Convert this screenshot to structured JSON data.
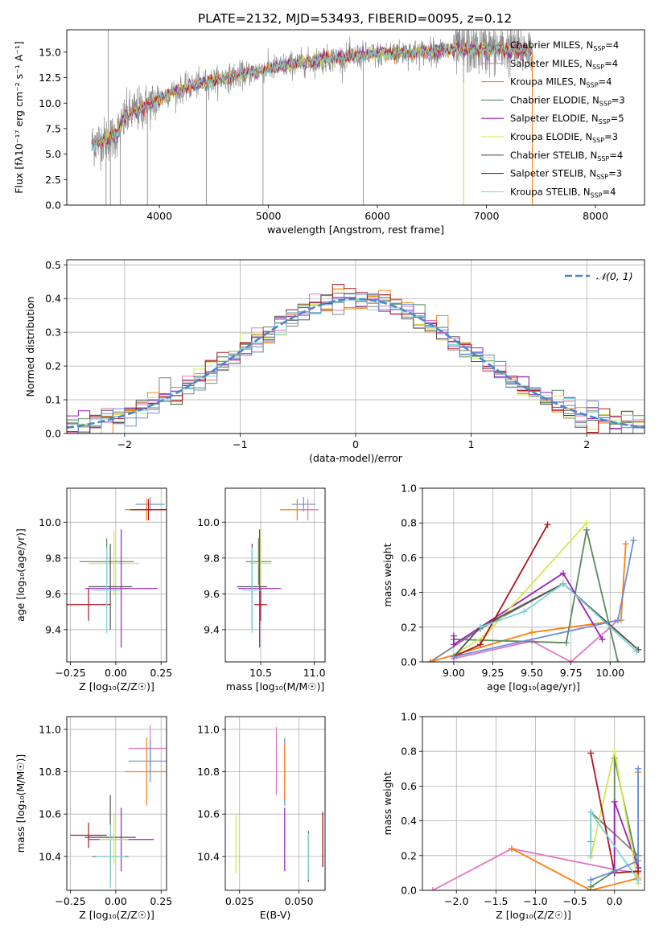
{
  "figure": {
    "title": "PLATE=2132, MJD=53493, FIBERID=0095, z=0.12"
  },
  "chart_data": [
    {
      "id": "spectrum",
      "type": "line",
      "xlabel": "wavelength [Angstrom, rest frame]",
      "ylabel": "Flux [fλ10⁻¹⁷ erg cm⁻² s⁻¹ A⁻¹]",
      "xlim": [
        3150,
        8450
      ],
      "ylim": [
        0,
        17.2
      ],
      "xticks": [
        4000,
        5000,
        6000,
        7000,
        8000
      ],
      "yticks": [
        0.0,
        2.5,
        5.0,
        7.5,
        10.0,
        12.5,
        15.0
      ],
      "grid": false,
      "legend_position": "right",
      "data_range": [
        3380,
        7420
      ],
      "model_continuum": [
        [
          3380,
          6.0
        ],
        [
          3600,
          6.8
        ],
        [
          3700,
          8.8
        ],
        [
          3900,
          9.8
        ],
        [
          4100,
          11.0
        ],
        [
          4400,
          12.0
        ],
        [
          4800,
          12.9
        ],
        [
          5200,
          13.8
        ],
        [
          5600,
          14.4
        ],
        [
          6000,
          14.8
        ],
        [
          6400,
          15.0
        ],
        [
          6800,
          15.3
        ],
        [
          7100,
          15.3
        ],
        [
          7420,
          15.2
        ]
      ],
      "series": [
        {
          "name": "Chabrier MILES, N",
          "sub": "SSP",
          "tail": "=4",
          "color": "#808080"
        },
        {
          "name": "Salpeter MILES, N",
          "sub": "SSP",
          "tail": "=4",
          "color": "#e377c2"
        },
        {
          "name": "Kroupa MILES, N",
          "sub": "SSP",
          "tail": "=4",
          "color": "#ff7f0e"
        },
        {
          "name": "Chabrier ELODIE, N",
          "sub": "SSP",
          "tail": "=3",
          "color": "#5b8a5b"
        },
        {
          "name": "Salpeter ELODIE, N",
          "sub": "SSP",
          "tail": "=5",
          "color": "#9a1fb8"
        },
        {
          "name": "Kroupa ELODIE, N",
          "sub": "SSP",
          "tail": "=3",
          "color": "#d4e84a"
        },
        {
          "name": "Chabrier STELIB, N",
          "sub": "SSP",
          "tail": "=4",
          "color": "#555555"
        },
        {
          "name": "Salpeter STELIB, N",
          "sub": "SSP",
          "tail": "=3",
          "color": "#b0141c"
        },
        {
          "name": "Kroupa STELIB, N",
          "sub": "SSP",
          "tail": "=4",
          "color": "#7fd4d9"
        }
      ]
    },
    {
      "id": "residuals",
      "type": "histogram",
      "xlabel": "(data-model)/error",
      "ylabel": "Normed distribution",
      "xlim": [
        -2.5,
        2.5
      ],
      "ylim": [
        0,
        0.515
      ],
      "xticks": [
        -2,
        -1,
        0,
        1,
        2
      ],
      "yticks": [
        0.0,
        0.1,
        0.2,
        0.3,
        0.4,
        0.5
      ],
      "grid": true,
      "legend_position": "upper right",
      "legend_label": "𝒩(0, 1)",
      "reference_color": "#4a86c8",
      "bin_width": 0.1,
      "series_colors": [
        "#808080",
        "#e377c2",
        "#ff7f0e",
        "#5b8a5b",
        "#9a1fb8",
        "#d4e84a",
        "#555555",
        "#b0141c",
        "#7fd4d9",
        "#6b8fd6"
      ]
    },
    {
      "id": "age_vs_Z",
      "type": "errorbar",
      "xlabel": "Z [log₁₀(Z/Z☉)]",
      "ylabel": "age  [log₁₀(age/yr)]",
      "xlim": [
        -0.27,
        0.28
      ],
      "ylim": [
        9.22,
        10.19
      ],
      "xticks": [
        -0.25,
        0.0,
        0.25
      ],
      "xtick_labels": [
        "−0.25",
        "0.00",
        "0.25"
      ],
      "yticks": [
        9.4,
        9.6,
        9.8,
        10.0
      ],
      "points": [
        {
          "x": 0.19,
          "xerr": 0.08,
          "y": 10.1,
          "yerr": 0.04,
          "color": "#6b8fd6"
        },
        {
          "x": 0.17,
          "xerr": 0.12,
          "y": 10.07,
          "yerr": 0.06,
          "color": "#ff7f0e"
        },
        {
          "x": 0.18,
          "xerr": 0.1,
          "y": 10.07,
          "yerr": 0.06,
          "color": "#b0141c"
        },
        {
          "x": -0.05,
          "xerr": 0.15,
          "y": 9.78,
          "yerr": 0.13,
          "color": "#5b8a5b"
        },
        {
          "x": -0.01,
          "xerr": 0.14,
          "y": 9.77,
          "yerr": 0.18,
          "color": "#d4e84a"
        },
        {
          "x": -0.03,
          "xerr": 0.12,
          "y": 9.64,
          "yerr": 0.24,
          "color": "#555555"
        },
        {
          "x": 0.03,
          "xerr": 0.2,
          "y": 9.63,
          "yerr": 0.33,
          "color": "#9a1fb8"
        },
        {
          "x": -0.15,
          "xerr": 0.12,
          "y": 9.54,
          "yerr": 0.09,
          "color": "#b0141c"
        },
        {
          "x": -0.05,
          "xerr": 0.08,
          "y": 9.62,
          "yerr": 0.24,
          "color": "#7fd4d9"
        }
      ]
    },
    {
      "id": "age_vs_mass",
      "type": "errorbar",
      "xlabel": "mass [log₁₀(M/M☉)]",
      "ylabel": "",
      "xlim": [
        10.17,
        11.1
      ],
      "ylim": [
        9.22,
        10.19
      ],
      "xticks": [
        10.5,
        11.0
      ],
      "xtick_labels": [
        "10.5",
        "11.0"
      ],
      "yticks": [
        9.4,
        9.6,
        9.8,
        10.0
      ],
      "points": [
        {
          "x": 10.9,
          "xerr": 0.11,
          "y": 10.1,
          "yerr": 0.04,
          "color": "#6b8fd6"
        },
        {
          "x": 10.84,
          "xerr": 0.16,
          "y": 10.07,
          "yerr": 0.06,
          "color": "#ff7f0e"
        },
        {
          "x": 10.94,
          "xerr": 0.1,
          "y": 10.07,
          "yerr": 0.06,
          "color": "#e377c2"
        },
        {
          "x": 10.48,
          "xerr": 0.12,
          "y": 9.78,
          "yerr": 0.13,
          "color": "#5b8a5b"
        },
        {
          "x": 10.5,
          "xerr": 0.1,
          "y": 9.77,
          "yerr": 0.18,
          "color": "#d4e84a"
        },
        {
          "x": 10.42,
          "xerr": 0.14,
          "y": 9.64,
          "yerr": 0.24,
          "color": "#555555"
        },
        {
          "x": 10.49,
          "xerr": 0.2,
          "y": 9.63,
          "yerr": 0.33,
          "color": "#9a1fb8"
        },
        {
          "x": 10.5,
          "xerr": 0.06,
          "y": 9.54,
          "yerr": 0.09,
          "color": "#b0141c"
        },
        {
          "x": 10.42,
          "xerr": 0.09,
          "y": 9.62,
          "yerr": 0.24,
          "color": "#7fd4d9"
        }
      ]
    },
    {
      "id": "mass_weight_vs_age",
      "type": "line",
      "xlabel": "age  [log₁₀(age/yr)]",
      "ylabel": "mass weight",
      "xlim": [
        8.8,
        10.22
      ],
      "ylim": [
        0,
        1.0
      ],
      "xticks": [
        9.0,
        9.25,
        9.5,
        9.75,
        10.0
      ],
      "xtick_labels": [
        "9.00",
        "9.25",
        "9.50",
        "9.75",
        "10.00"
      ],
      "yticks": [
        0.0,
        0.2,
        0.4,
        0.6,
        0.8,
        1.0
      ],
      "grid": true,
      "series": [
        {
          "color": "#808080",
          "x": [
            8.85,
            9.17,
            9.7,
            10.18
          ],
          "y": [
            0.0,
            0.19,
            0.45,
            0.07
          ]
        },
        {
          "color": "#e377c2",
          "x": [
            9.0,
            9.5,
            9.75,
            10.05
          ],
          "y": [
            0.02,
            0.12,
            0.0,
            0.24
          ]
        },
        {
          "color": "#ff7f0e",
          "x": [
            8.85,
            9.5,
            10.07,
            10.1
          ],
          "y": [
            0.0,
            0.17,
            0.24,
            0.68
          ]
        },
        {
          "color": "#5b8a5b",
          "x": [
            9.0,
            9.72,
            9.85,
            10.05
          ],
          "y": [
            0.13,
            0.11,
            0.76,
            0.0
          ]
        },
        {
          "color": "#9a1fb8",
          "x": [
            9.0,
            9.0,
            9.7,
            9.95
          ],
          "y": [
            0.15,
            0.1,
            0.51,
            0.13
          ]
        },
        {
          "color": "#d4e84a",
          "x": [
            9.0,
            9.2,
            9.85
          ],
          "y": [
            0.04,
            0.15,
            0.8
          ]
        },
        {
          "color": "#555555",
          "x": [
            9.0,
            9.17,
            9.7,
            10.18
          ],
          "y": [
            0.03,
            0.2,
            0.45,
            0.07
          ]
        },
        {
          "color": "#b0141c",
          "x": [
            9.0,
            9.17,
            9.6
          ],
          "y": [
            0.03,
            0.1,
            0.79
          ]
        },
        {
          "color": "#7fd4d9",
          "x": [
            9.17,
            9.45,
            9.7,
            10.17
          ],
          "y": [
            0.2,
            0.29,
            0.45,
            0.06
          ]
        },
        {
          "color": "#6b8fd6",
          "x": [
            9.0,
            10.05,
            10.15
          ],
          "y": [
            0.03,
            0.24,
            0.7
          ]
        }
      ]
    },
    {
      "id": "mass_vs_Z",
      "type": "errorbar",
      "xlabel": "Z [log₁₀(Z/Z☉)]",
      "ylabel": "mass [log₁₀(M/M☉)]",
      "xlim": [
        -0.27,
        0.28
      ],
      "ylim": [
        10.24,
        11.06
      ],
      "xticks": [
        -0.25,
        0.0,
        0.25
      ],
      "xtick_labels": [
        "−0.25",
        "0.00",
        "0.25"
      ],
      "yticks": [
        10.4,
        10.6,
        10.8,
        11.0
      ],
      "points": [
        {
          "x": 0.19,
          "xerr": 0.12,
          "y": 10.91,
          "yerr": 0.11,
          "color": "#e377c2"
        },
        {
          "x": 0.19,
          "xerr": 0.12,
          "y": 10.85,
          "yerr": 0.1,
          "color": "#6b8fd6"
        },
        {
          "x": 0.17,
          "xerr": 0.12,
          "y": 10.8,
          "yerr": 0.16,
          "color": "#ff7f0e"
        },
        {
          "x": 0.03,
          "xerr": 0.18,
          "y": 10.48,
          "yerr": 0.15,
          "color": "#9a1fb8"
        },
        {
          "x": -0.15,
          "xerr": 0.1,
          "y": 10.5,
          "yerr": 0.06,
          "color": "#b0141c"
        },
        {
          "x": -0.03,
          "xerr": 0.14,
          "y": 10.49,
          "yerr": 0.2,
          "color": "#555555"
        },
        {
          "x": -0.03,
          "xerr": 0.1,
          "y": 10.4,
          "yerr": 0.14,
          "color": "#5b8a5b"
        },
        {
          "x": -0.03,
          "xerr": 0.08,
          "y": 10.4,
          "yerr": 0.15,
          "color": "#7fd4d9"
        },
        {
          "x": -0.01,
          "xerr": 0.08,
          "y": 10.48,
          "yerr": 0.12,
          "color": "#d4e84a"
        }
      ]
    },
    {
      "id": "mass_vs_EBV",
      "type": "errorbar",
      "xlabel": "E(B-V)",
      "ylabel": "",
      "xlim": [
        0.019,
        0.061
      ],
      "ylim": [
        10.24,
        11.06
      ],
      "xticks": [
        0.025,
        0.05
      ],
      "xtick_labels": [
        "0.025",
        "0.050"
      ],
      "yticks": [
        10.4,
        10.6,
        10.8,
        11.0
      ],
      "points": [
        {
          "x": 0.0405,
          "xerr": 0,
          "y": 10.85,
          "yerr": 0.16,
          "color": "#e377c2"
        },
        {
          "x": 0.044,
          "xerr": 0,
          "y": 10.8,
          "yerr": 0.16,
          "color": "#6b8fd6"
        },
        {
          "x": 0.044,
          "xerr": 0,
          "y": 10.8,
          "yerr": 0.13,
          "color": "#ff7f0e"
        },
        {
          "x": 0.044,
          "xerr": 0,
          "y": 10.48,
          "yerr": 0.15,
          "color": "#9a1fb8"
        },
        {
          "x": 0.0235,
          "xerr": 0,
          "y": 10.46,
          "yerr": 0.14,
          "color": "#d4e84a"
        },
        {
          "x": 0.054,
          "xerr": 0,
          "y": 10.4,
          "yerr": 0.12,
          "color": "#555555"
        },
        {
          "x": 0.054,
          "xerr": 0,
          "y": 10.4,
          "yerr": 0.11,
          "color": "#7fd4d9"
        },
        {
          "x": 0.06,
          "xerr": 0,
          "y": 10.48,
          "yerr": 0.13,
          "color": "#5b8a5b"
        },
        {
          "x": 0.06,
          "xerr": 0,
          "y": 10.48,
          "yerr": 0.13,
          "color": "#b0141c"
        }
      ]
    },
    {
      "id": "mass_weight_vs_Z",
      "type": "line",
      "xlabel": "Z [log₁₀(Z/Z☉)]",
      "ylabel": "mass weight",
      "xlim": [
        -2.43,
        0.38
      ],
      "ylim": [
        0,
        1.0
      ],
      "xticks": [
        -2.0,
        -1.5,
        -1.0,
        -0.5,
        0.0
      ],
      "xtick_labels": [
        "−2.0",
        "−1.5",
        "−1.0",
        "−0.5",
        "0.0"
      ],
      "yticks": [
        0.0,
        0.2,
        0.4,
        0.6,
        0.8,
        1.0
      ],
      "grid": true,
      "series": [
        {
          "color": "#e377c2",
          "x": [
            -2.3,
            -1.3,
            0.0,
            0.3
          ],
          "y": [
            0.0,
            0.24,
            0.12,
            0.1
          ]
        },
        {
          "color": "#ff7f0e",
          "x": [
            -1.3,
            -0.3,
            0.3,
            0.3
          ],
          "y": [
            0.24,
            0.0,
            0.07,
            0.68
          ]
        },
        {
          "color": "#808080",
          "x": [
            -0.3,
            -0.3,
            0.3
          ],
          "y": [
            0.28,
            0.45,
            0.2
          ]
        },
        {
          "color": "#5b8a5b",
          "x": [
            -0.3,
            0.0,
            0.0,
            0.3
          ],
          "y": [
            0.02,
            0.11,
            0.76,
            0.13
          ]
        },
        {
          "color": "#9a1fb8",
          "x": [
            0.0,
            0.0,
            0.3
          ],
          "y": [
            0.1,
            0.51,
            0.13
          ]
        },
        {
          "color": "#d4e84a",
          "x": [
            -0.3,
            0.0,
            0.3
          ],
          "y": [
            0.19,
            0.8,
            0.04
          ]
        },
        {
          "color": "#b0141c",
          "x": [
            -0.3,
            0.0,
            0.3
          ],
          "y": [
            0.79,
            0.1,
            0.11
          ]
        },
        {
          "color": "#7fd4d9",
          "x": [
            -0.3,
            -0.3,
            0.3
          ],
          "y": [
            0.2,
            0.45,
            0.06
          ]
        },
        {
          "color": "#6b8fd6",
          "x": [
            -0.3,
            0.0,
            0.3,
            0.3
          ],
          "y": [
            0.06,
            0.11,
            0.17,
            0.7
          ]
        }
      ]
    }
  ]
}
